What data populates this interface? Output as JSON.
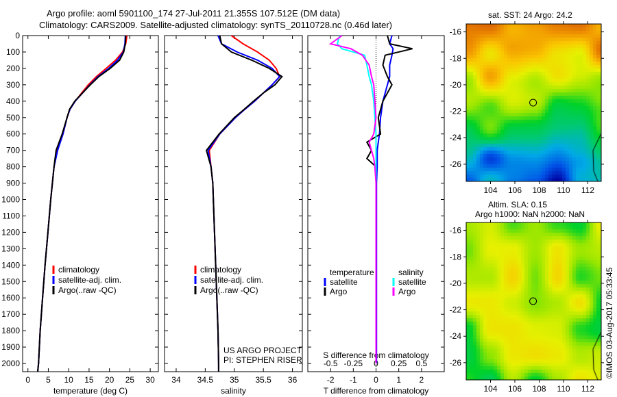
{
  "title_line1": "Argo profile: aoml 5901100_174 27-Jul-2011 21.355S 107.512E (DM data)",
  "title_line2": "Climatology: CARS2009. Satellite-adjusted climatology: synTS_20110728.nc (0.46d later)",
  "colors": {
    "climatology": "#ff0000",
    "satellite": "#0000ff",
    "argo": "#000000",
    "sal_satellite": "#00ffff",
    "sal_argo": "#ff00ff"
  },
  "chart_data": [
    {
      "type": "line",
      "title": "",
      "xlabel": "temperature (deg C)",
      "ylabel": "",
      "xlim": [
        -1.3,
        32
      ],
      "ylim": [
        2050,
        0
      ],
      "xticks": [
        0,
        5,
        10,
        15,
        20,
        25,
        30
      ],
      "yticks": [
        0,
        100,
        200,
        300,
        400,
        500,
        600,
        700,
        800,
        900,
        1000,
        1100,
        1200,
        1300,
        1400,
        1500,
        1600,
        1700,
        1800,
        1900,
        2000
      ],
      "depth": [
        0,
        50,
        100,
        150,
        200,
        250,
        300,
        350,
        400,
        450,
        500,
        600,
        700,
        800,
        900,
        1000,
        1200,
        1400,
        1600,
        1800,
        2000,
        2050
      ],
      "series": [
        {
          "name": "climatology",
          "values": [
            24.3,
            24.0,
            23.2,
            21.5,
            19.2,
            16.8,
            14.8,
            13.2,
            11.6,
            10.3,
            9.6,
            8.6,
            7.2,
            6.4,
            6.0,
            5.6,
            4.9,
            4.2,
            3.6,
            3.0,
            2.6,
            2.4
          ]
        },
        {
          "name": "satellite-adj. clim.",
          "values": [
            23.9,
            23.8,
            23.4,
            22.0,
            19.8,
            17.2,
            15.2,
            13.4,
            11.6,
            10.3,
            9.6,
            8.6,
            7.3,
            6.4,
            6.0,
            5.6,
            4.9,
            4.2,
            3.6,
            3.0,
            2.6,
            2.4
          ]
        },
        {
          "name": "Argo(..raw -QC)",
          "values": [
            24.0,
            23.9,
            23.5,
            22.5,
            20.2,
            17.4,
            15.3,
            13.4,
            11.5,
            10.2,
            9.6,
            8.4,
            6.9,
            6.4,
            6.0,
            5.6,
            4.9,
            4.2,
            3.6,
            3.0,
            2.6,
            2.4
          ]
        }
      ],
      "legend": [
        "climatology",
        "satellite-adj. clim.",
        "Argo(..raw -QC)"
      ],
      "legend_placement": "lower-center"
    },
    {
      "type": "line",
      "xlabel": "salinity",
      "xlim": [
        33.8,
        36.17
      ],
      "ylim": [
        2050,
        0
      ],
      "xticks": [
        34,
        34.5,
        35,
        35.5,
        36
      ],
      "depth": [
        0,
        50,
        100,
        150,
        200,
        250,
        300,
        350,
        400,
        450,
        500,
        600,
        700,
        800,
        900,
        1000,
        1200,
        1400,
        1600,
        1800,
        2000,
        2050
      ],
      "series": [
        {
          "name": "climatology",
          "values": [
            34.95,
            35.15,
            35.4,
            35.6,
            35.72,
            35.78,
            35.65,
            35.5,
            35.35,
            35.18,
            35.02,
            34.75,
            34.57,
            34.6,
            34.63,
            34.64,
            34.66,
            34.68,
            34.7,
            34.72,
            34.73,
            34.73
          ]
        },
        {
          "name": "satellite-adj. clim.",
          "values": [
            34.72,
            34.78,
            35.05,
            35.4,
            35.65,
            35.78,
            35.65,
            35.5,
            35.35,
            35.18,
            35.02,
            34.75,
            34.55,
            34.6,
            34.63,
            34.64,
            34.66,
            34.68,
            34.7,
            34.72,
            34.73,
            34.73
          ]
        },
        {
          "name": "Argo(..raw -QC)",
          "values": [
            34.75,
            34.78,
            34.95,
            35.3,
            35.6,
            35.82,
            35.7,
            35.5,
            35.33,
            35.17,
            35.0,
            34.74,
            34.52,
            34.6,
            34.63,
            34.64,
            34.66,
            34.68,
            34.7,
            34.72,
            34.73,
            34.73
          ]
        }
      ],
      "legend": [
        "climatology",
        "satellite-adj. clim.",
        "Argo(..raw -QC)"
      ],
      "annotation": [
        "US ARGO PROJECT",
        "PI: STEPHEN RISER"
      ]
    },
    {
      "type": "line",
      "xlabel": "T difference from climatology",
      "xlabel2": "S difference from climatology",
      "xlim": [
        -3,
        3
      ],
      "ylim": [
        2050,
        0
      ],
      "xticks": [
        -2,
        -1,
        0,
        1,
        2
      ],
      "xticks2": [
        "-0.5",
        "-0.25",
        "0",
        "0.25",
        "0.5"
      ],
      "depth": [
        0,
        50,
        80,
        120,
        180,
        250,
        300,
        400,
        500,
        600,
        650,
        700,
        750,
        800,
        900,
        1000,
        1200,
        2000
      ],
      "series": [
        {
          "name": "temperature satellite",
          "values": [
            0.7,
            0.6,
            0.75,
            0.7,
            0.6,
            0.6,
            0.5,
            0.3,
            0.2,
            0.15,
            0.1,
            0.05,
            0.05,
            0.05,
            0.02,
            0.02,
            0.02,
            0.02
          ]
        },
        {
          "name": "temperature Argo",
          "values": [
            0.5,
            0.6,
            1.6,
            0.4,
            0.3,
            0.5,
            0.7,
            0.3,
            0.1,
            0.2,
            -0.4,
            -0.2,
            -0.4,
            0,
            0,
            0,
            0,
            0
          ]
        },
        {
          "name": "salinity satellite",
          "values": [
            -1.6,
            -1.7,
            -1.5,
            -0.5,
            -0.4,
            -0.3,
            -0.2,
            -0.1,
            -0.05,
            0,
            0,
            0,
            0,
            0,
            0,
            0,
            0,
            0
          ]
        },
        {
          "name": "salinity Argo",
          "values": [
            -1.5,
            -2.0,
            -1.1,
            -0.6,
            -0.3,
            -0.2,
            -0.1,
            -0.05,
            0,
            -0.1,
            -0.3,
            -0.2,
            -0.1,
            -0.05,
            0,
            0,
            0,
            0
          ]
        }
      ],
      "legend_headers": [
        "temperature",
        "salinity"
      ],
      "legend": [
        "satellite",
        "Argo",
        "satellite",
        "Argo"
      ]
    }
  ],
  "map_sst": {
    "title": "sat. SST: 24 Argo: 24.2",
    "xticks": [
      "104",
      "106",
      "108",
      "110",
      "112"
    ],
    "yticks": [
      "-16",
      "-18",
      "-20",
      "-22",
      "-24",
      "-26"
    ],
    "float_lon": 107.5,
    "float_lat": -21.35
  },
  "map_sla": {
    "title1": "Altim. SLA: 0.15",
    "title2": "Argo h1000: NaN h2000: NaN",
    "xticks": [
      "104",
      "106",
      "108",
      "110",
      "112"
    ],
    "yticks": [
      "-16",
      "-18",
      "-20",
      "-22",
      "-24",
      "-26"
    ]
  },
  "credit": "©IMOS 03-Aug-2017 05:33:45"
}
